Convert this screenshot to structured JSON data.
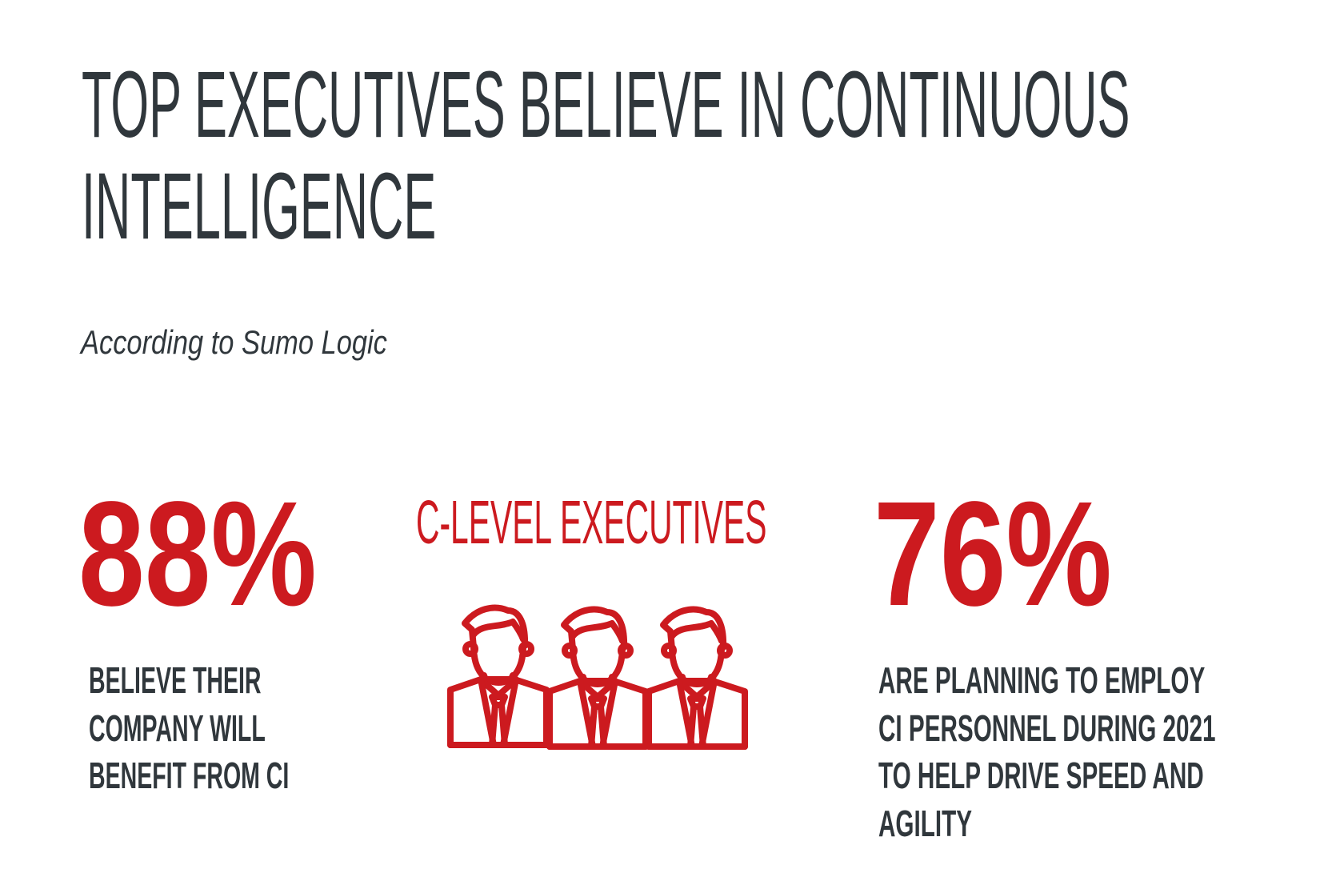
{
  "header": {
    "title_lines": [
      "TOP EXECUTIVES BELIEVE IN CONTINUOUS",
      "INTELLIGENCE"
    ],
    "subtitle": "According to Sumo Logic"
  },
  "stats": [
    {
      "value": "88%",
      "description_lines": [
        "BELIEVE THEIR",
        "COMPANY WILL",
        "BENEFIT FROM CI"
      ]
    },
    {
      "value": "76%",
      "description_lines": [
        "ARE PLANNING TO EMPLOY",
        "CI PERSONNEL DURING 2021",
        "TO HELP DRIVE SPEED AND",
        "AGILITY"
      ]
    }
  ],
  "center": {
    "label": "C-LEVEL EXECUTIVES",
    "icon": "executives-group-icon"
  },
  "colors": {
    "accent": "#cc1a1f",
    "text": "#30373c",
    "background": "#ffffff"
  }
}
